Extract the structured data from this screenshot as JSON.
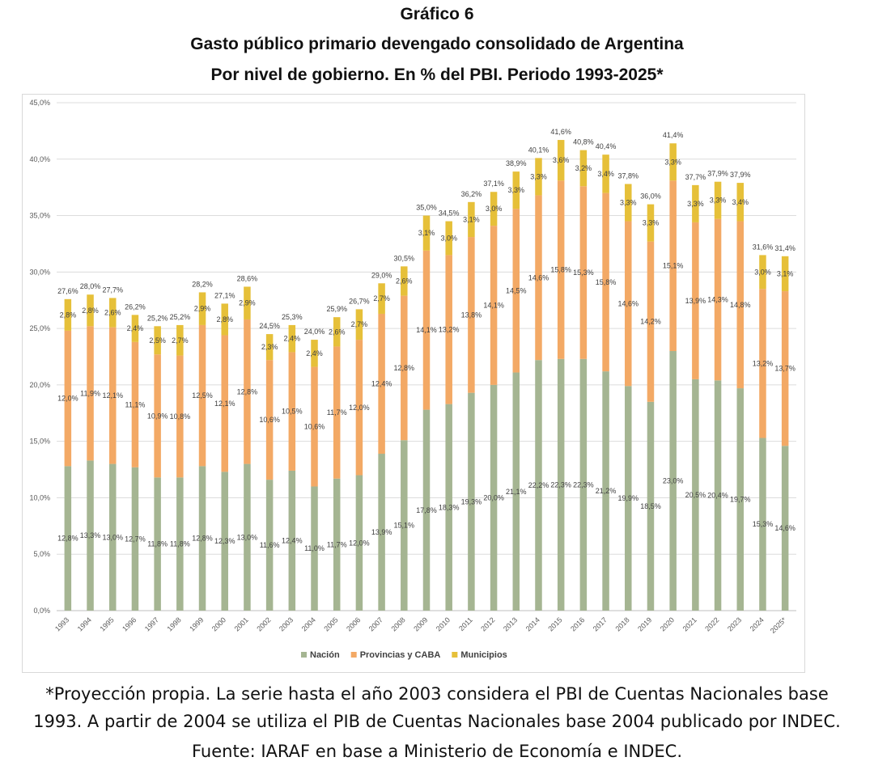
{
  "title": {
    "line1": "Gráfico 6",
    "line2": "Gasto público primario devengado consolidado de Argentina",
    "line3": "Por nivel de gobierno. En % del PBI. Periodo 1993-2025*"
  },
  "footnote": {
    "line1": "*Proyección propia. La serie hasta el año 2003 considera el PBI de Cuentas Nacionales base",
    "line2": "1993.  A partir de 2004  se utiliza el PIB de Cuentas Nacionales base 2004 publicado por INDEC.",
    "line3": "Fuente: IARAF en base a Ministerio de Economía e INDEC."
  },
  "chart_data": {
    "type": "bar",
    "stacked": true,
    "categories": [
      "1993",
      "1994",
      "1995",
      "1996",
      "1997",
      "1998",
      "1999",
      "2000",
      "2001",
      "2002",
      "2003",
      "2004",
      "2005",
      "2006",
      "2007",
      "2008",
      "2009",
      "2010",
      "2011",
      "2012",
      "2013",
      "2014",
      "2015",
      "2016",
      "2017",
      "2018",
      "2019",
      "2020",
      "2021",
      "2022",
      "2023",
      "2024",
      "2025*"
    ],
    "series": [
      {
        "name": "Nación",
        "color": "#a5b592",
        "values": [
          12.8,
          13.3,
          13.0,
          12.7,
          11.8,
          11.8,
          12.8,
          12.3,
          13.0,
          11.6,
          12.4,
          11.0,
          11.7,
          12.0,
          13.9,
          15.1,
          17.8,
          18.3,
          19.3,
          20.0,
          21.1,
          22.2,
          22.3,
          22.3,
          21.2,
          19.9,
          18.5,
          23.0,
          20.5,
          20.4,
          19.7,
          15.3,
          14.6
        ]
      },
      {
        "name": "Provincias y CABA",
        "color": "#f3a965",
        "values": [
          12.0,
          11.9,
          12.1,
          11.1,
          10.9,
          10.8,
          12.5,
          12.1,
          12.8,
          10.6,
          10.5,
          10.6,
          11.7,
          12.0,
          12.4,
          12.8,
          14.1,
          13.2,
          13.8,
          14.1,
          14.5,
          14.6,
          15.8,
          15.3,
          15.8,
          14.6,
          14.2,
          15.1,
          13.9,
          14.3,
          14.8,
          13.2,
          13.7
        ]
      },
      {
        "name": "Municipios",
        "color": "#e6c039",
        "values": [
          2.8,
          2.8,
          2.6,
          2.4,
          2.5,
          2.7,
          2.9,
          2.8,
          2.9,
          2.3,
          2.4,
          2.4,
          2.6,
          2.7,
          2.7,
          2.6,
          3.1,
          3.0,
          3.1,
          3.0,
          3.3,
          3.3,
          3.6,
          3.2,
          3.4,
          3.3,
          3.3,
          3.3,
          3.3,
          3.3,
          3.4,
          3.0,
          3.1
        ]
      }
    ],
    "totals": [
      27.6,
      28.0,
      27.7,
      26.2,
      25.2,
      25.2,
      28.2,
      27.1,
      28.6,
      24.5,
      25.3,
      24.0,
      25.9,
      26.7,
      29.0,
      30.5,
      35.0,
      34.5,
      36.2,
      37.1,
      38.9,
      40.1,
      41.6,
      40.8,
      40.4,
      37.8,
      36.0,
      41.4,
      37.7,
      37.9,
      37.9,
      31.6,
      31.4
    ],
    "ylim": [
      0,
      45
    ],
    "ytick_step": 5,
    "ytick_suffix": "%",
    "grid": true,
    "legend_position": "bottom-center",
    "decimal_separator": ","
  }
}
